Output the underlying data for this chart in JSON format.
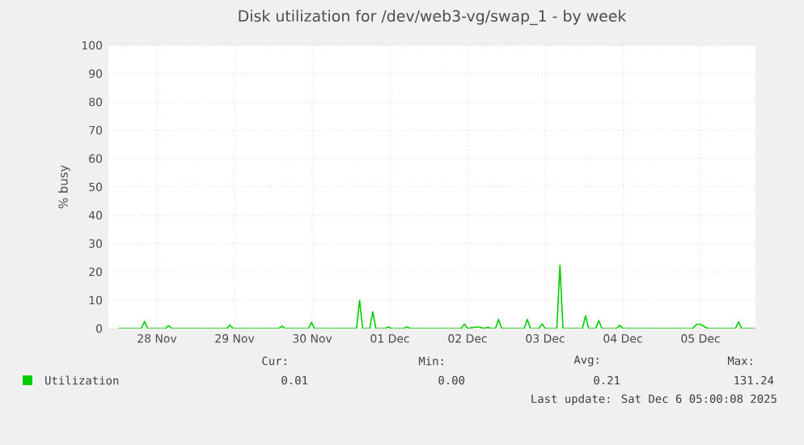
{
  "chart_data": {
    "type": "line",
    "title": "Disk utilization for /dev/web3-vg/swap_1 - by week",
    "ylabel": "% busy",
    "xlim": [
      "2025-11-27T21:00",
      "2025-12-06T05:00"
    ],
    "ylim": [
      0,
      100
    ],
    "xticks": [
      {
        "value": "2025-11-28T12:00",
        "label": "28 Nov"
      },
      {
        "value": "2025-11-29T12:00",
        "label": "29 Nov"
      },
      {
        "value": "2025-11-30T12:00",
        "label": "30 Nov"
      },
      {
        "value": "2025-12-01T12:00",
        "label": "01 Dec"
      },
      {
        "value": "2025-12-02T12:00",
        "label": "02 Dec"
      },
      {
        "value": "2025-12-03T12:00",
        "label": "03 Dec"
      },
      {
        "value": "2025-12-04T12:00",
        "label": "04 Dec"
      },
      {
        "value": "2025-12-05T12:00",
        "label": "05 Dec"
      }
    ],
    "yticks": [
      0,
      10,
      20,
      30,
      40,
      50,
      60,
      70,
      80,
      90,
      100
    ],
    "grid": true,
    "legend": "bottom",
    "marker": "none",
    "line_style": "solid",
    "series": [
      {
        "name": "Utilization",
        "color": "#00cc00",
        "x": [
          "2025-11-28T00:00",
          "2025-11-28T07:12",
          "2025-11-28T08:10",
          "2025-11-28T09:07",
          "2025-11-28T14:38",
          "2025-11-28T15:36",
          "2025-11-28T16:34",
          "2025-11-29T09:36",
          "2025-11-29T10:34",
          "2025-11-29T11:31",
          "2025-11-30T01:41",
          "2025-11-30T02:38",
          "2025-11-30T03:36",
          "2025-11-30T10:48",
          "2025-11-30T11:46",
          "2025-11-30T12:43",
          "2025-12-01T01:41",
          "2025-12-01T02:38",
          "2025-12-01T03:36",
          "2025-12-01T05:46",
          "2025-12-01T06:43",
          "2025-12-01T07:41",
          "2025-12-01T10:34",
          "2025-12-01T11:31",
          "2025-12-01T12:29",
          "2025-12-01T16:19",
          "2025-12-01T17:17",
          "2025-12-01T18:14",
          "2025-12-02T10:05",
          "2025-12-02T11:02",
          "2025-12-02T12:00",
          "2025-12-02T14:10",
          "2025-12-02T15:36",
          "2025-12-02T17:17",
          "2025-12-02T18:14",
          "2025-12-02T19:12",
          "2025-12-02T20:38",
          "2025-12-02T21:36",
          "2025-12-02T22:34",
          "2025-12-03T05:31",
          "2025-12-03T06:29",
          "2025-12-03T07:26",
          "2025-12-03T10:05",
          "2025-12-03T11:02",
          "2025-12-03T12:00",
          "2025-12-03T15:36",
          "2025-12-03T16:34",
          "2025-12-03T17:31",
          "2025-12-03T23:31",
          "2025-12-04T00:29",
          "2025-12-04T01:26",
          "2025-12-04T03:36",
          "2025-12-04T04:34",
          "2025-12-04T05:31",
          "2025-12-04T10:05",
          "2025-12-04T11:02",
          "2025-12-04T12:00",
          "2025-12-05T09:36",
          "2025-12-05T10:48",
          "2025-12-05T12:00",
          "2025-12-05T13:26",
          "2025-12-05T14:24",
          "2025-12-05T22:48",
          "2025-12-05T23:46",
          "2025-12-06T00:43",
          "2025-12-06T04:48"
        ],
        "values": [
          0,
          0,
          2.5,
          0,
          0,
          1,
          0,
          0,
          1.2,
          0,
          0,
          0.8,
          0,
          0,
          2.2,
          0,
          0,
          9.9,
          0,
          0,
          5.9,
          0,
          0,
          0.6,
          0,
          0,
          0.6,
          0,
          0,
          1.6,
          0,
          0.5,
          0.5,
          0,
          0.5,
          0,
          0,
          3.2,
          0,
          0,
          3.2,
          0,
          0,
          1.6,
          0,
          0,
          22.3,
          0,
          0,
          4.5,
          0,
          0,
          2.8,
          0,
          0,
          1.1,
          0,
          0,
          1.5,
          1.5,
          0.5,
          0,
          0,
          2.3,
          0,
          0
        ]
      }
    ],
    "annotations": [
      "Cur:",
      "Min:",
      "Avg:",
      "Max:",
      "0.01",
      "0.00",
      "0.21",
      "131.24",
      "Last update: Sat Dec  6 05:00:08 2025"
    ]
  }
}
